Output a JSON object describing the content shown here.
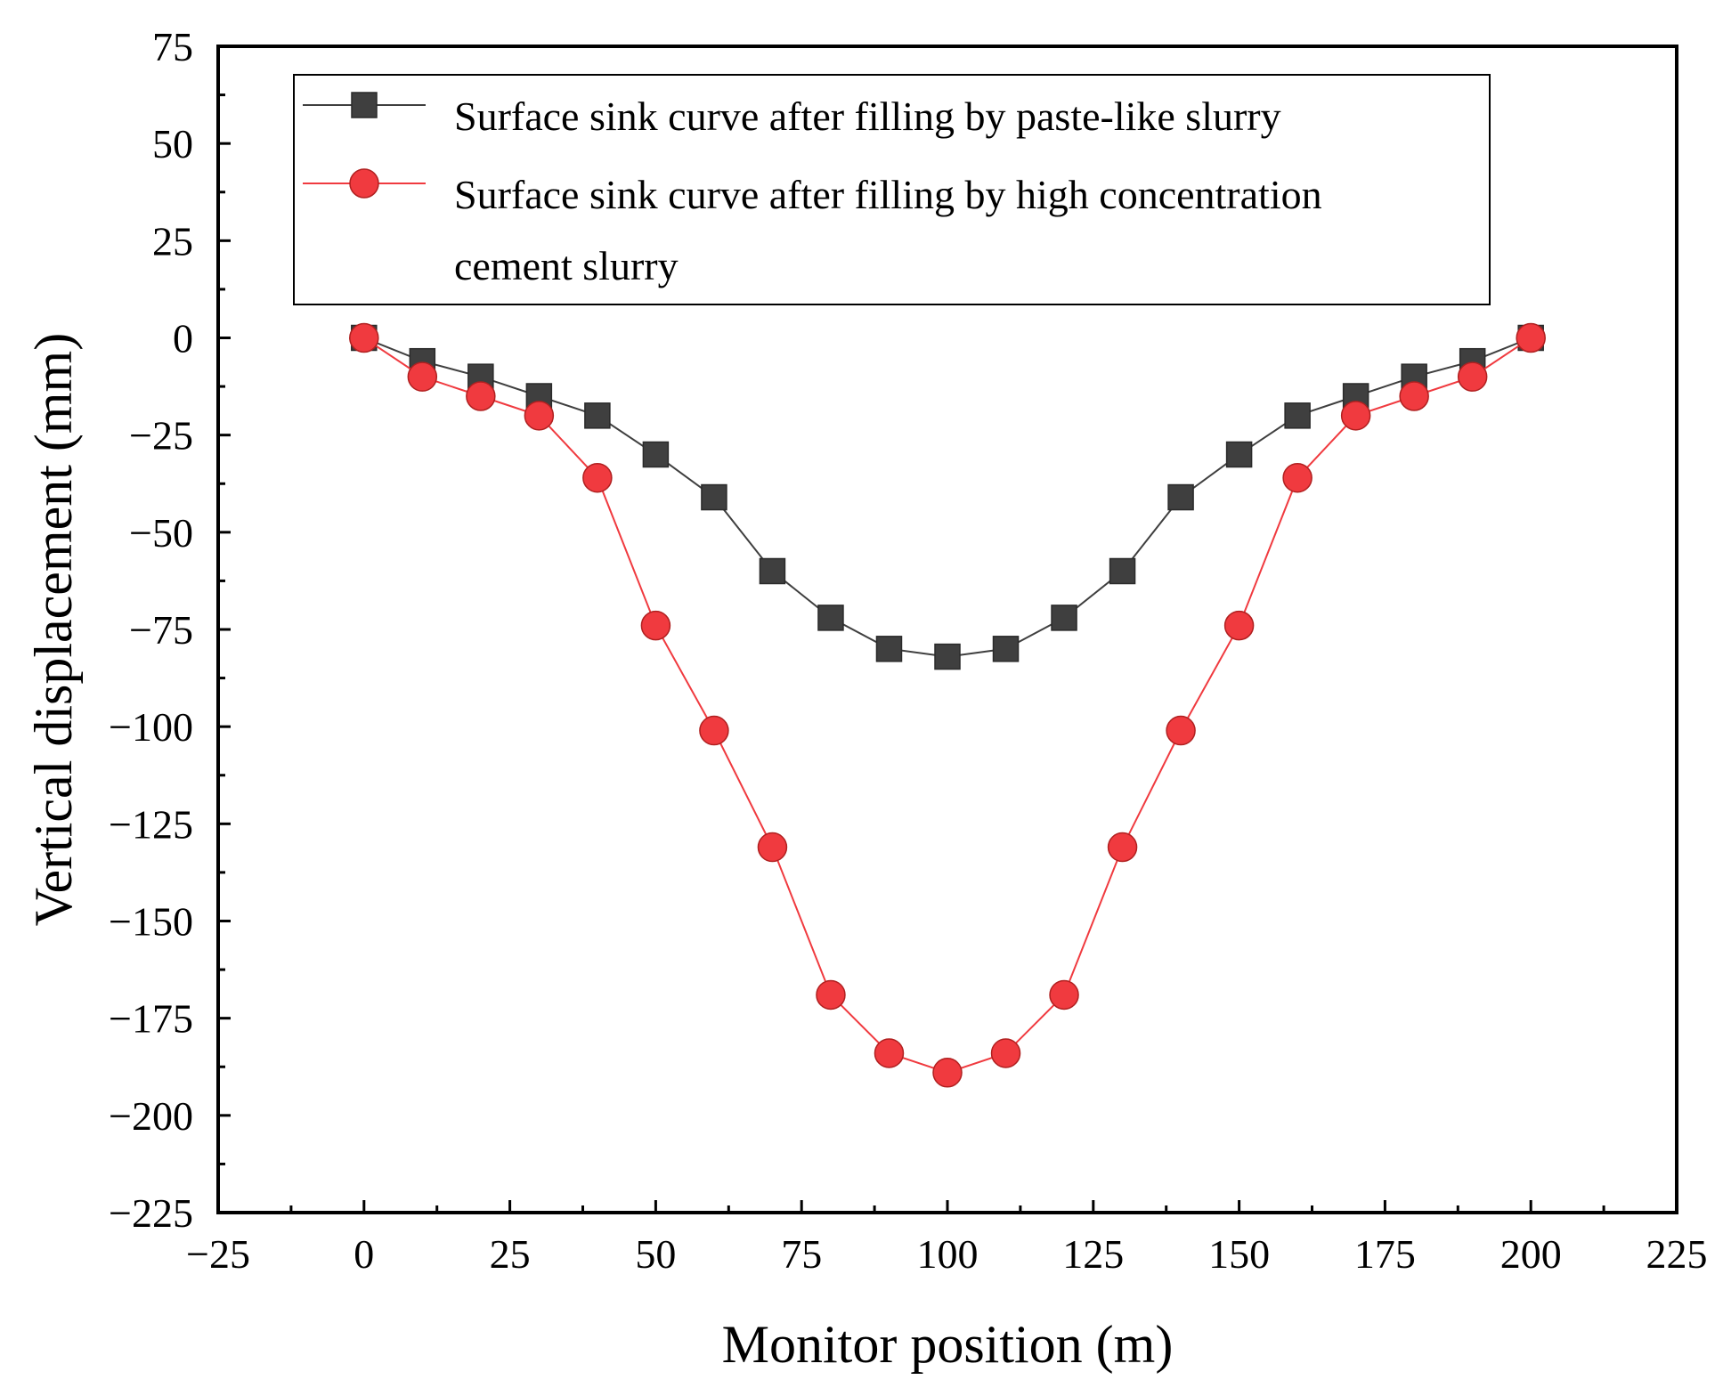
{
  "chart_data": {
    "type": "line",
    "title": "",
    "xlabel": "Monitor position (m)",
    "ylabel": "Vertical displacement (mm)",
    "xlim": [
      -25,
      225
    ],
    "ylim": [
      -225,
      75
    ],
    "xticks": [
      -25,
      0,
      25,
      50,
      75,
      100,
      125,
      150,
      175,
      200,
      225
    ],
    "yticks": [
      75,
      50,
      25,
      0,
      -25,
      -50,
      -75,
      -100,
      -125,
      -150,
      -175,
      -200,
      -225
    ],
    "xtick_labels": [
      "−25",
      "0",
      "25",
      "50",
      "75",
      "100",
      "125",
      "150",
      "175",
      "200",
      "225"
    ],
    "ytick_labels": [
      "75",
      "50",
      "25",
      "0",
      "−25",
      "−50",
      "−75",
      "−100",
      "−125",
      "−150",
      "−175",
      "−200",
      "−225"
    ],
    "grid": false,
    "legend_position": "top",
    "x": [
      0,
      10,
      20,
      30,
      40,
      50,
      60,
      70,
      80,
      90,
      100,
      110,
      120,
      130,
      140,
      150,
      160,
      170,
      180,
      190,
      200
    ],
    "series": [
      {
        "name": "Surface sink curve after filling by paste-like slurry",
        "legend_lines": [
          "Surface sink curve after filling by paste-like slurry"
        ],
        "marker": "square",
        "color": "#3f3f3f",
        "values": [
          0,
          -6,
          -10,
          -15,
          -20,
          -30,
          -41,
          -60,
          -72,
          -80,
          -82,
          -80,
          -72,
          -60,
          -41,
          -30,
          -20,
          -15,
          -10,
          -6,
          0
        ]
      },
      {
        "name": "Surface sink curve after filling by high concentration cement slurry",
        "legend_lines": [
          "Surface sink curve after filling by high concentration",
          "cement slurry"
        ],
        "marker": "circle",
        "color": "#f03a3f",
        "values": [
          0,
          -10,
          -15,
          -20,
          -36,
          -74,
          -101,
          -131,
          -169,
          -184,
          -189,
          -184,
          -169,
          -131,
          -101,
          -74,
          -36,
          -20,
          -15,
          -10,
          0
        ]
      }
    ]
  }
}
